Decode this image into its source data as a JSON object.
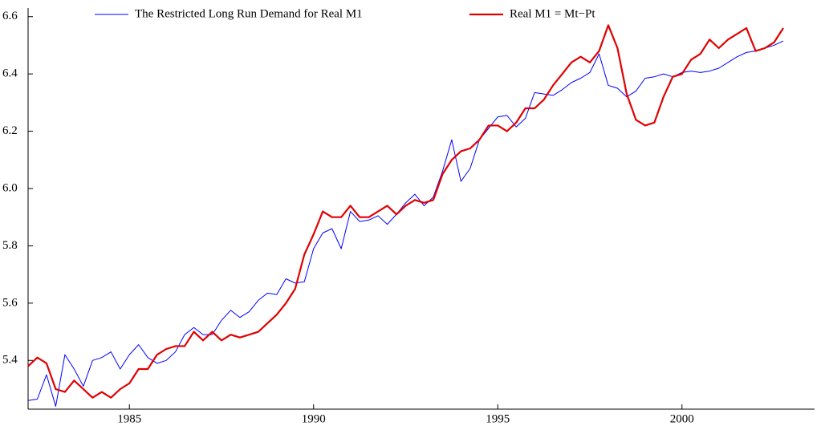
{
  "chart_data": {
    "type": "line",
    "x": [
      1982.25,
      1982.5,
      1982.75,
      1983,
      1983.25,
      1983.5,
      1983.75,
      1984,
      1984.25,
      1984.5,
      1984.75,
      1985,
      1985.25,
      1985.5,
      1985.75,
      1986,
      1986.25,
      1986.5,
      1986.75,
      1987,
      1987.25,
      1987.5,
      1987.75,
      1988,
      1988.25,
      1988.5,
      1988.75,
      1989,
      1989.25,
      1989.5,
      1989.75,
      1990,
      1990.25,
      1990.5,
      1990.75,
      1991,
      1991.25,
      1991.5,
      1991.75,
      1992,
      1992.25,
      1992.5,
      1992.75,
      1993,
      1993.25,
      1993.5,
      1993.75,
      1994,
      1994.25,
      1994.5,
      1994.75,
      1995,
      1995.25,
      1995.5,
      1995.75,
      1996,
      1996.25,
      1996.5,
      1996.75,
      1997,
      1997.25,
      1997.5,
      1997.75,
      1998,
      1998.25,
      1998.5,
      1998.75,
      1999,
      1999.25,
      1999.5,
      1999.75,
      2000,
      2000.25,
      2000.5,
      2000.75,
      2001,
      2001.25,
      2001.5,
      2001.75,
      2002,
      2002.25,
      2002.5,
      2002.75
    ],
    "series": [
      {
        "name": "The Restricted Long Run Demand for Real M1",
        "color": "#0000ff",
        "width": 1,
        "values": [
          5.26,
          5.265,
          5.35,
          5.24,
          5.42,
          5.37,
          5.31,
          5.4,
          5.41,
          5.43,
          5.37,
          5.42,
          5.455,
          5.41,
          5.39,
          5.4,
          5.43,
          5.49,
          5.515,
          5.49,
          5.49,
          5.54,
          5.575,
          5.55,
          5.57,
          5.61,
          5.635,
          5.63,
          5.685,
          5.67,
          5.675,
          5.79,
          5.845,
          5.86,
          5.79,
          5.92,
          5.885,
          5.89,
          5.905,
          5.875,
          5.91,
          5.95,
          5.98,
          5.94,
          5.97,
          6.06,
          6.17,
          6.025,
          6.07,
          6.17,
          6.21,
          6.25,
          6.255,
          6.215,
          6.245,
          6.335,
          6.33,
          6.325,
          6.345,
          6.37,
          6.385,
          6.405,
          6.47,
          6.36,
          6.35,
          6.32,
          6.34,
          6.385,
          6.39,
          6.4,
          6.39,
          6.405,
          6.41,
          6.405,
          6.41,
          6.42,
          6.44,
          6.46,
          6.475,
          6.48,
          6.49,
          6.5,
          6.515
        ]
      },
      {
        "name": "Real M1 = Mt−Pt",
        "color": "#e00000",
        "width": 2.2,
        "values": [
          5.38,
          5.41,
          5.39,
          5.3,
          5.29,
          5.33,
          5.3,
          5.27,
          5.29,
          5.27,
          5.3,
          5.32,
          5.37,
          5.37,
          5.42,
          5.44,
          5.45,
          5.45,
          5.5,
          5.47,
          5.5,
          5.47,
          5.49,
          5.48,
          5.49,
          5.5,
          5.53,
          5.56,
          5.6,
          5.65,
          5.77,
          5.84,
          5.92,
          5.9,
          5.9,
          5.94,
          5.9,
          5.9,
          5.92,
          5.94,
          5.91,
          5.94,
          5.96,
          5.95,
          5.96,
          6.05,
          6.1,
          6.13,
          6.14,
          6.17,
          6.22,
          6.22,
          6.2,
          6.23,
          6.28,
          6.28,
          6.31,
          6.36,
          6.4,
          6.44,
          6.46,
          6.44,
          6.48,
          6.57,
          6.49,
          6.33,
          6.24,
          6.22,
          6.23,
          6.32,
          6.39,
          6.4,
          6.45,
          6.47,
          6.52,
          6.49,
          6.52,
          6.54,
          6.56,
          6.48,
          6.49,
          6.51,
          6.56
        ]
      }
    ],
    "xlim": [
      1982.25,
      2003.6
    ],
    "xticks": [
      1985,
      1990,
      1995,
      2000
    ],
    "ylim": [
      5.23,
      6.63
    ],
    "yticks": [
      5.4,
      5.6,
      5.8,
      {
        "value": 6,
        "label": "6.0"
      },
      6.2,
      6.4,
      6.6
    ]
  }
}
